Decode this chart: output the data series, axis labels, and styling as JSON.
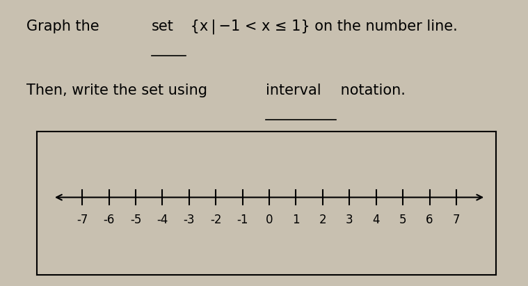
{
  "background_color": "#c8c0b0",
  "box_color": "#000000",
  "axis_color": "#000000",
  "text_color": "#000000",
  "title_fontsize": 15,
  "tick_fontsize": 12,
  "tick_positions": [
    -7,
    -6,
    -5,
    -4,
    -3,
    -2,
    -1,
    0,
    1,
    2,
    3,
    4,
    5,
    6,
    7
  ],
  "tick_labels": [
    "-7",
    "-6",
    "-5",
    "-4",
    "-3",
    "-2",
    "-1",
    "0",
    "1",
    "2",
    "3",
    "4",
    "5",
    "6",
    "7"
  ]
}
